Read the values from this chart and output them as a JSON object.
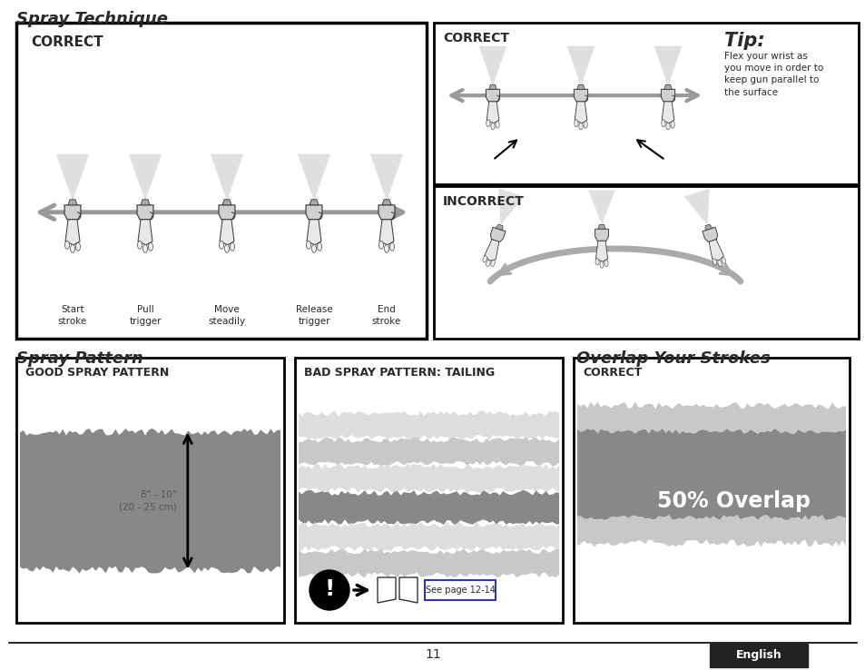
{
  "bg_color": "#ffffff",
  "page_number": "11",
  "title_spray_technique": "Spray Technique",
  "title_spray_pattern": "Spray Pattern",
  "title_overlap": "Overlap Your Strokes",
  "correct_label": "CORRECT",
  "incorrect_label": "INCORRECT",
  "good_spray_label": "GOOD SPRAY PATTERN",
  "bad_spray_label": "BAD SPRAY PATTERN: TAILING",
  "correct_overlap_label": "CORRECT",
  "overlap_text": "50% Overlap",
  "see_page_text": "See page 12-14",
  "measurement_text": "8\" - 10\"\n(20 - 25 cm)",
  "tip_title": "Tip:",
  "tip_body": "Flex your wrist as\nyou move in order to\nkeep gun parallel to\nthe surface",
  "english_label": "English",
  "gun_labels_p1": [
    "Start\nstroke",
    "Pull\ntrigger",
    "Move\nsteadily",
    "Release\ntrigger",
    "End\nstroke"
  ],
  "gray_dark": "#888888",
  "gray_medium": "#aaaaaa",
  "gray_light": "#c8c8c8",
  "gray_lighter": "#dedede",
  "text_dark": "#2a2a2a",
  "blue_border": "#3333bb",
  "panel_lw": 2.0
}
